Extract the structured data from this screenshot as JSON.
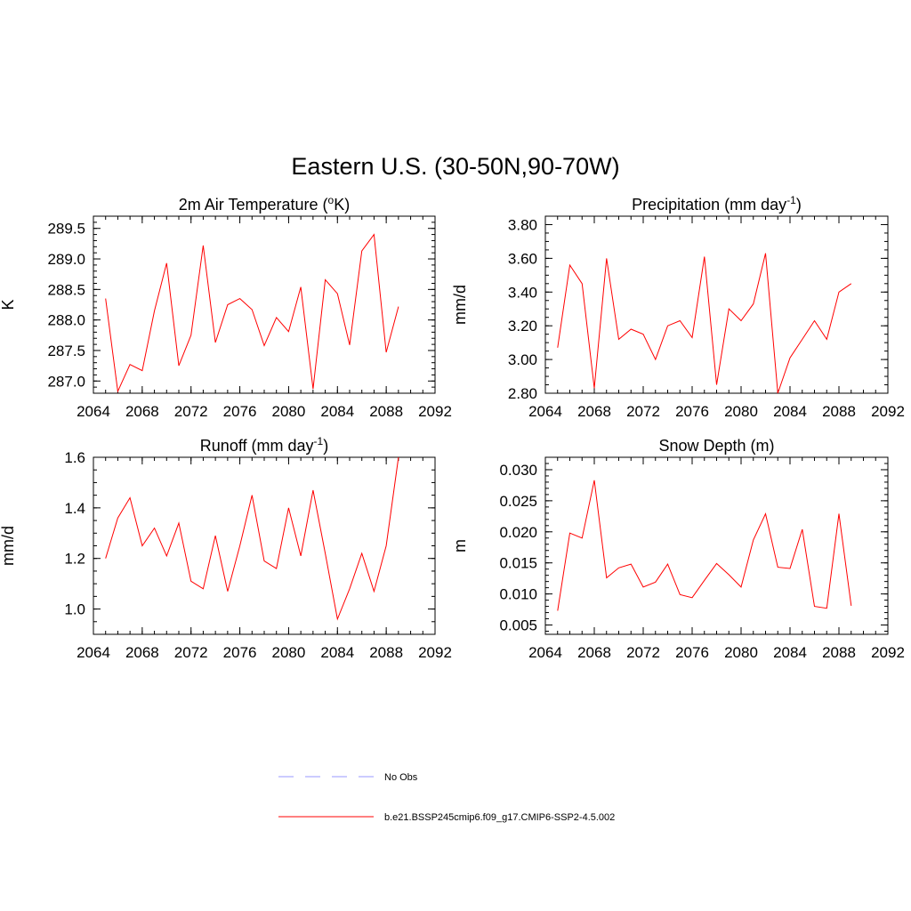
{
  "figure": {
    "title": "Eastern U.S. (30-50N,90-70W)"
  },
  "legend": {
    "items": [
      {
        "label": "No Obs",
        "color": "#9999ff",
        "style": "dashed"
      },
      {
        "label": "b.e21.BSSP245cmip6.f09_g17.CMIP6-SSP2-4.5.002",
        "color": "#ff0000",
        "style": "solid"
      }
    ]
  },
  "chart_data": [
    {
      "type": "line",
      "title": "2m Air Temperature (°K)",
      "title_parts": {
        "pre": "2m Air Temperature (",
        "sup": "o",
        "post": "K)"
      },
      "ylabel": "K",
      "xlim": [
        2064,
        2092
      ],
      "ylim": [
        286.8,
        289.7
      ],
      "xticks": [
        2064,
        2068,
        2072,
        2076,
        2080,
        2084,
        2088,
        2092
      ],
      "xminor": 1,
      "yticks": [
        287.0,
        287.5,
        288.0,
        288.5,
        289.0,
        289.5
      ],
      "ytick_labels": [
        "287.0",
        "287.5",
        "288.0",
        "288.5",
        "289.0",
        "289.5"
      ],
      "yminor": 0.1,
      "series": [
        {
          "color": "#ff0000",
          "x": [
            2065,
            2066,
            2067,
            2068,
            2069,
            2070,
            2071,
            2072,
            2073,
            2074,
            2075,
            2076,
            2077,
            2078,
            2079,
            2080,
            2081,
            2082,
            2083,
            2084,
            2085,
            2086,
            2087,
            2088,
            2089
          ],
          "y": [
            288.35,
            286.83,
            287.27,
            287.17,
            288.15,
            288.93,
            287.25,
            287.75,
            289.22,
            287.63,
            288.25,
            288.35,
            288.17,
            287.58,
            288.04,
            287.81,
            288.54,
            286.87,
            288.66,
            288.43,
            287.59,
            289.13,
            289.4,
            287.47,
            288.22
          ]
        }
      ]
    },
    {
      "type": "line",
      "title": "Precipitation (mm day-1)",
      "title_parts": {
        "pre": "Precipitation (mm day",
        "sup": "-1",
        "post": ")"
      },
      "ylabel": "mm/d",
      "xlim": [
        2064,
        2092
      ],
      "ylim": [
        2.8,
        3.85
      ],
      "xticks": [
        2064,
        2068,
        2072,
        2076,
        2080,
        2084,
        2088,
        2092
      ],
      "xminor": 1,
      "yticks": [
        2.8,
        3.0,
        3.2,
        3.4,
        3.6,
        3.8
      ],
      "ytick_labels": [
        "2.80",
        "3.00",
        "3.20",
        "3.40",
        "3.60",
        "3.80"
      ],
      "yminor": 0.05,
      "series": [
        {
          "color": "#ff0000",
          "x": [
            2065,
            2066,
            2067,
            2068,
            2069,
            2070,
            2071,
            2072,
            2073,
            2074,
            2075,
            2076,
            2077,
            2078,
            2079,
            2080,
            2081,
            2082,
            2083,
            2084,
            2085,
            2086,
            2087,
            2088,
            2089
          ],
          "y": [
            3.07,
            3.56,
            3.45,
            2.83,
            3.6,
            3.12,
            3.18,
            3.15,
            3.0,
            3.2,
            3.23,
            3.13,
            3.61,
            2.85,
            3.3,
            3.23,
            3.33,
            3.63,
            2.8,
            3.01,
            3.12,
            3.23,
            3.12,
            3.4,
            3.45
          ]
        }
      ]
    },
    {
      "type": "line",
      "title": "Runoff (mm day-1)",
      "title_parts": {
        "pre": "Runoff (mm day",
        "sup": "-1",
        "post": ")"
      },
      "ylabel": "mm/d",
      "xlim": [
        2064,
        2092
      ],
      "ylim": [
        0.9,
        1.6
      ],
      "xticks": [
        2064,
        2068,
        2072,
        2076,
        2080,
        2084,
        2088,
        2092
      ],
      "xminor": 1,
      "yticks": [
        1.0,
        1.2,
        1.4,
        1.6
      ],
      "ytick_labels": [
        "1.0",
        "1.2",
        "1.4",
        "1.6"
      ],
      "yminor": 0.05,
      "series": [
        {
          "color": "#ff0000",
          "x": [
            2065,
            2066,
            2067,
            2068,
            2069,
            2070,
            2071,
            2072,
            2073,
            2074,
            2075,
            2076,
            2077,
            2078,
            2079,
            2080,
            2081,
            2082,
            2083,
            2084,
            2085,
            2086,
            2087,
            2088,
            2089
          ],
          "y": [
            1.2,
            1.36,
            1.44,
            1.25,
            1.32,
            1.21,
            1.34,
            1.11,
            1.08,
            1.29,
            1.07,
            1.25,
            1.45,
            1.19,
            1.16,
            1.4,
            1.21,
            1.47,
            1.22,
            0.96,
            1.08,
            1.22,
            1.07,
            1.25,
            1.6
          ]
        }
      ]
    },
    {
      "type": "line",
      "title": "Snow Depth (m)",
      "title_parts": {
        "pre": "Snow Depth (m)",
        "sup": "",
        "post": ""
      },
      "ylabel": "m",
      "xlim": [
        2064,
        2092
      ],
      "ylim": [
        0.0035,
        0.032
      ],
      "xticks": [
        2064,
        2068,
        2072,
        2076,
        2080,
        2084,
        2088,
        2092
      ],
      "xminor": 1,
      "yticks": [
        0.005,
        0.01,
        0.015,
        0.02,
        0.025,
        0.03
      ],
      "ytick_labels": [
        "0.005",
        "0.010",
        "0.015",
        "0.020",
        "0.025",
        "0.030"
      ],
      "yminor": 0.001,
      "series": [
        {
          "color": "#ff0000",
          "x": [
            2065,
            2066,
            2067,
            2068,
            2069,
            2070,
            2071,
            2072,
            2073,
            2074,
            2075,
            2076,
            2077,
            2078,
            2079,
            2080,
            2081,
            2082,
            2083,
            2084,
            2085,
            2086,
            2087,
            2088,
            2089
          ],
          "y": [
            0.0073,
            0.0198,
            0.019,
            0.0283,
            0.0126,
            0.0142,
            0.0148,
            0.0111,
            0.0119,
            0.0148,
            0.0099,
            0.0094,
            0.0122,
            0.0149,
            0.0131,
            0.0111,
            0.0187,
            0.0229,
            0.0143,
            0.0141,
            0.0204,
            0.008,
            0.0077,
            0.0229,
            0.0081
          ]
        }
      ]
    }
  ]
}
